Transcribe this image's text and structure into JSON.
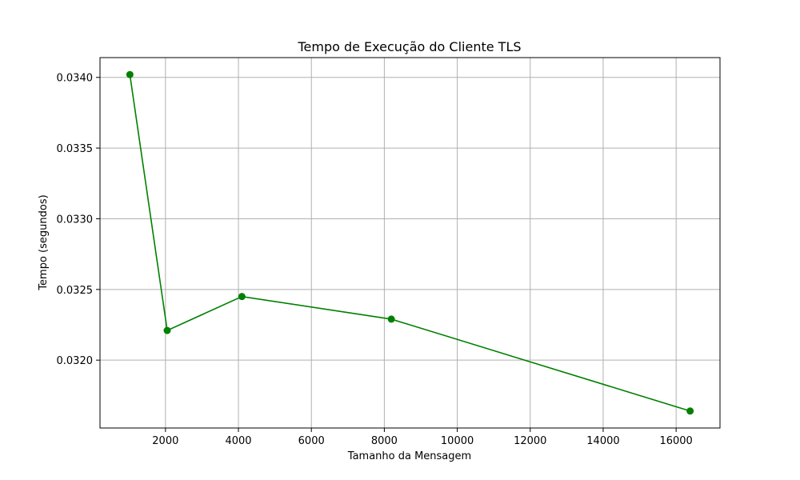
{
  "chart_data": {
    "type": "line",
    "title": "Tempo de Execução do Cliente TLS",
    "xlabel": "Tamanho da Mensagem",
    "ylabel": "Tempo (segundos)",
    "x": [
      1024,
      2048,
      4096,
      8192,
      16384
    ],
    "series": [
      {
        "values": [
          0.03402,
          0.03221,
          0.03245,
          0.03229,
          0.03164
        ],
        "color": "#008000",
        "marker": "circle"
      }
    ],
    "xlim": [
      205,
      17203
    ],
    "ylim": [
      0.03152,
      0.03414
    ],
    "x_ticks": [
      2000,
      4000,
      6000,
      8000,
      10000,
      12000,
      14000,
      16000
    ],
    "y_ticks": [
      0.032,
      0.0325,
      0.033,
      0.0335,
      0.034
    ],
    "x_tick_labels": [
      "2000",
      "4000",
      "6000",
      "8000",
      "10000",
      "12000",
      "14000",
      "16000"
    ],
    "y_tick_labels": [
      "0.0320",
      "0.0325",
      "0.0330",
      "0.0335",
      "0.0340"
    ],
    "grid": true,
    "grid_color": "#b0b0b0",
    "legend": "none"
  }
}
